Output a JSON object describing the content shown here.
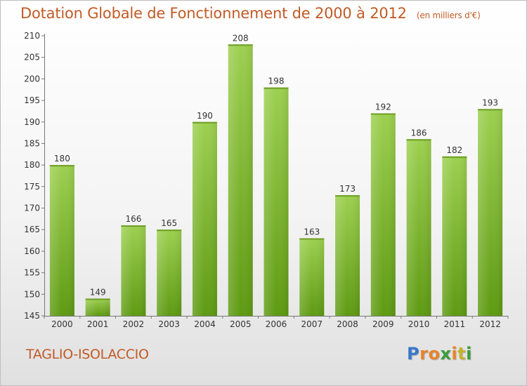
{
  "chart_data": {
    "type": "bar",
    "title": "Dotation Globale de Fonctionnement de 2000 à 2012",
    "unit_note": "(en milliers d'€)",
    "categories": [
      "2000",
      "2001",
      "2002",
      "2003",
      "2004",
      "2005",
      "2006",
      "2007",
      "2008",
      "2009",
      "2010",
      "2011",
      "2012"
    ],
    "values": [
      180,
      149,
      166,
      165,
      190,
      208,
      198,
      163,
      173,
      192,
      186,
      182,
      193
    ],
    "ylim": [
      145,
      210
    ],
    "yticks": [
      145,
      150,
      155,
      160,
      165,
      170,
      175,
      180,
      185,
      190,
      195,
      200,
      205,
      210
    ],
    "grid": false,
    "bar_color": "#7cb22c"
  },
  "footer": {
    "commune": "TAGLIO-ISOLACCIO",
    "logo_letters": [
      {
        "ch": "P",
        "color": "#3a78c8"
      },
      {
        "ch": "r",
        "color": "#e8832a"
      },
      {
        "ch": "o",
        "color": "#e8832a"
      },
      {
        "ch": "x",
        "color": "#3a9c3a"
      },
      {
        "ch": "i",
        "color": "#e8832a"
      },
      {
        "ch": "t",
        "color": "#c8b22a"
      },
      {
        "ch": "i",
        "color": "#3a9c3a"
      }
    ]
  }
}
